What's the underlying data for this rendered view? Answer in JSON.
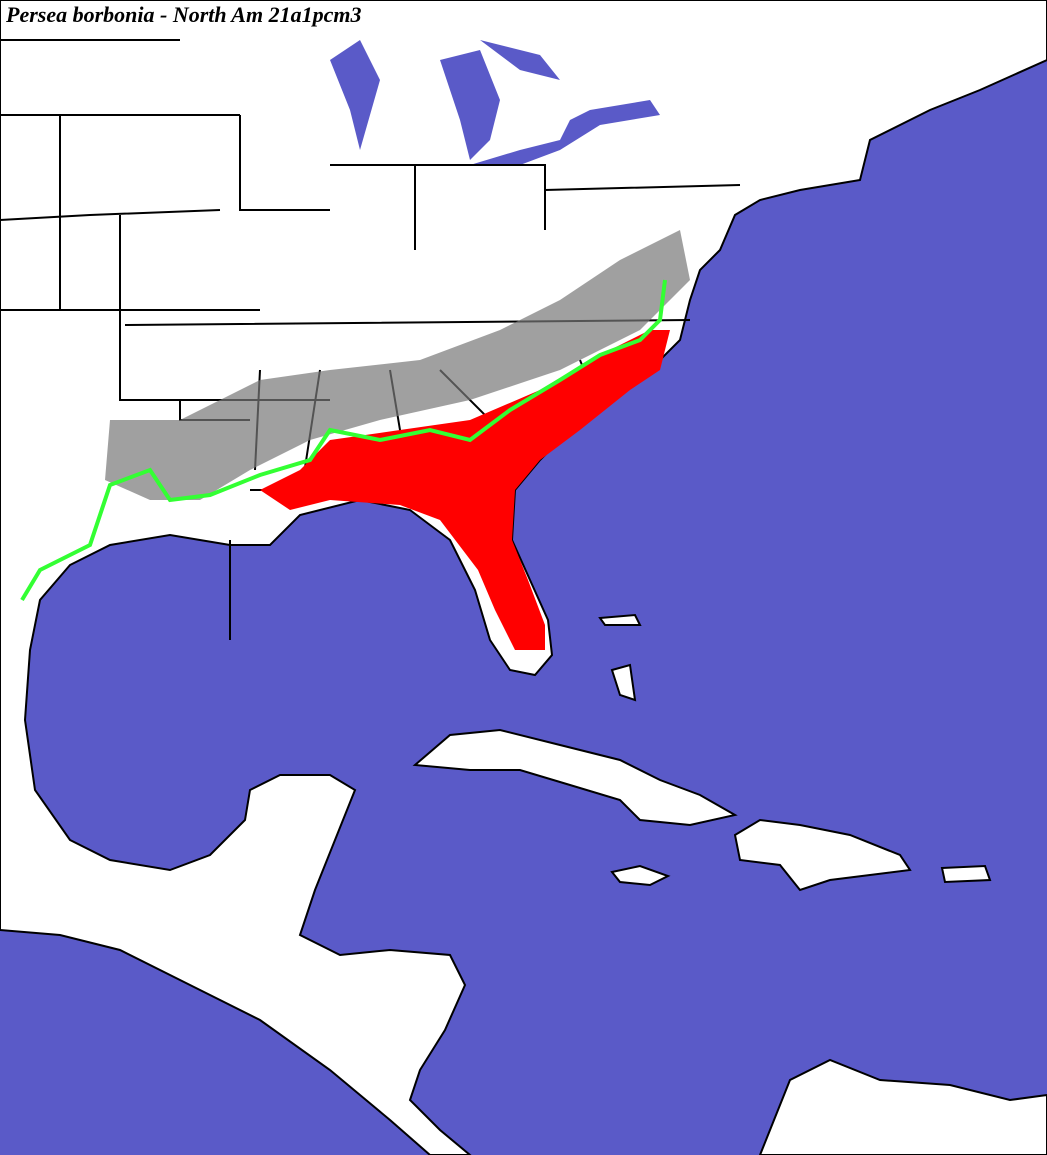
{
  "title": "Persea borbonia - North Am 21a1pcm3"
}
